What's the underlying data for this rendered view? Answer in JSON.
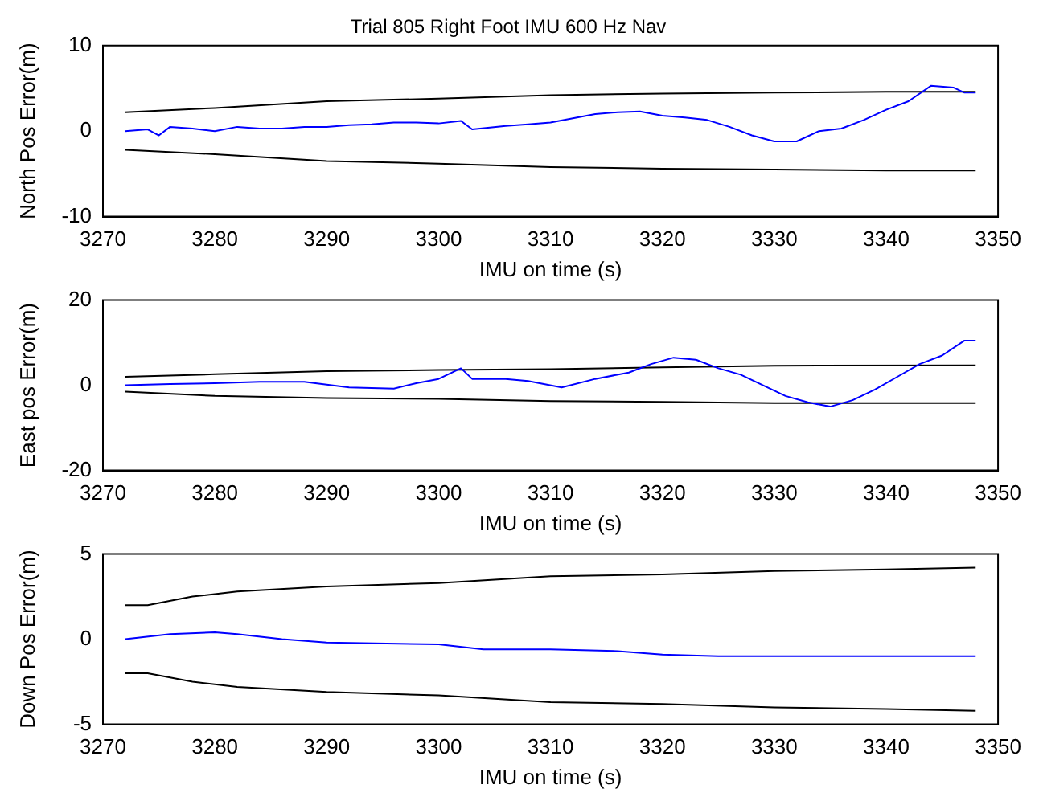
{
  "chart_data": [
    {
      "type": "line",
      "title": "Trial 805 Right Foot IMU 600 Hz Nav",
      "xlabel": "IMU on time (s)",
      "ylabel": "North Pos Error(m)",
      "xlim": [
        3270,
        3350
      ],
      "xticks": [
        3270,
        3280,
        3290,
        3300,
        3310,
        3320,
        3330,
        3340,
        3350
      ],
      "ylim": [
        -10,
        10
      ],
      "yticks": [
        -10,
        0,
        10
      ],
      "marker": "none",
      "series": [
        {
          "color": "#0000ff",
          "x": [
            3272,
            3274,
            3275,
            3276,
            3278,
            3280,
            3282,
            3284,
            3286,
            3288,
            3290,
            3292,
            3294,
            3296,
            3298,
            3300,
            3302,
            3303,
            3306,
            3308,
            3310,
            3312,
            3314,
            3316,
            3318,
            3320,
            3322,
            3324,
            3326,
            3328,
            3330,
            3332,
            3334,
            3336,
            3338,
            3340,
            3342,
            3344,
            3346,
            3347,
            3348
          ],
          "values": [
            0,
            0.2,
            -0.5,
            0.5,
            0.3,
            0,
            0.5,
            0.3,
            0.3,
            0.5,
            0.5,
            0.7,
            0.8,
            1,
            1,
            0.9,
            1.2,
            0.2,
            0.6,
            0.8,
            1,
            1.5,
            2,
            2.2,
            2.3,
            1.8,
            1.6,
            1.3,
            0.5,
            -0.5,
            -1.2,
            -1.2,
            0,
            0.3,
            1.3,
            2.5,
            3.5,
            5.3,
            5.1,
            4.5,
            4.5
          ]
        },
        {
          "color": "#000000",
          "x": [
            3272,
            3280,
            3290,
            3300,
            3310,
            3320,
            3330,
            3340,
            3348
          ],
          "values": [
            2.2,
            2.7,
            3.5,
            3.8,
            4.2,
            4.4,
            4.5,
            4.6,
            4.6
          ]
        },
        {
          "color": "#000000",
          "x": [
            3272,
            3280,
            3290,
            3300,
            3310,
            3320,
            3330,
            3340,
            3348
          ],
          "values": [
            -2.2,
            -2.7,
            -3.5,
            -3.8,
            -4.2,
            -4.4,
            -4.5,
            -4.6,
            -4.6
          ]
        }
      ]
    },
    {
      "type": "line",
      "xlabel": "IMU on time (s)",
      "ylabel": "East pos Error(m)",
      "xlim": [
        3270,
        3350
      ],
      "xticks": [
        3270,
        3280,
        3290,
        3300,
        3310,
        3320,
        3330,
        3340,
        3350
      ],
      "ylim": [
        -20,
        20
      ],
      "yticks": [
        -20,
        0,
        20
      ],
      "marker": "none",
      "series": [
        {
          "color": "#0000ff",
          "x": [
            3272,
            3276,
            3280,
            3284,
            3288,
            3292,
            3296,
            3298,
            3300,
            3302,
            3303,
            3306,
            3308,
            3311,
            3314,
            3317,
            3319,
            3321,
            3323,
            3325,
            3327,
            3329,
            3331,
            3333,
            3335,
            3337,
            3339,
            3341,
            3343,
            3345,
            3347,
            3348
          ],
          "values": [
            0,
            0.3,
            0.5,
            0.8,
            0.8,
            -0.5,
            -0.8,
            0.5,
            1.5,
            4,
            1.5,
            1.5,
            1,
            -0.5,
            1.5,
            3,
            5,
            6.5,
            6,
            4,
            2.5,
            0,
            -2.5,
            -4,
            -5,
            -3.5,
            -1,
            2,
            5,
            7,
            10.5,
            10.5
          ]
        },
        {
          "color": "#000000",
          "x": [
            3272,
            3280,
            3290,
            3300,
            3310,
            3320,
            3330,
            3348
          ],
          "values": [
            2,
            2.6,
            3.3,
            3.6,
            3.8,
            4.2,
            4.6,
            4.7
          ]
        },
        {
          "color": "#000000",
          "x": [
            3272,
            3280,
            3290,
            3300,
            3310,
            3320,
            3330,
            3348
          ],
          "values": [
            -1.5,
            -2.5,
            -3,
            -3.2,
            -3.7,
            -3.9,
            -4.2,
            -4.2
          ]
        }
      ]
    },
    {
      "type": "line",
      "xlabel": "IMU on time (s)",
      "ylabel": "Down Pos Error(m)",
      "xlim": [
        3270,
        3350
      ],
      "xticks": [
        3270,
        3280,
        3290,
        3300,
        3310,
        3320,
        3330,
        3340,
        3350
      ],
      "ylim": [
        -5,
        5
      ],
      "yticks": [
        -5,
        0,
        5
      ],
      "marker": "none",
      "series": [
        {
          "color": "#0000ff",
          "x": [
            3272,
            3276,
            3280,
            3282,
            3286,
            3290,
            3300,
            3304,
            3310,
            3316,
            3320,
            3325,
            3348
          ],
          "values": [
            0,
            0.3,
            0.4,
            0.3,
            0,
            -0.2,
            -0.3,
            -0.6,
            -0.6,
            -0.7,
            -0.9,
            -1,
            -1
          ]
        },
        {
          "color": "#000000",
          "x": [
            3272,
            3274,
            3278,
            3282,
            3290,
            3300,
            3310,
            3320,
            3330,
            3340,
            3348
          ],
          "values": [
            2,
            2,
            2.5,
            2.8,
            3.1,
            3.3,
            3.7,
            3.8,
            4,
            4.1,
            4.2
          ]
        },
        {
          "color": "#000000",
          "x": [
            3272,
            3274,
            3278,
            3282,
            3290,
            3300,
            3310,
            3320,
            3330,
            3340,
            3348
          ],
          "values": [
            -2,
            -2,
            -2.5,
            -2.8,
            -3.1,
            -3.3,
            -3.7,
            -3.8,
            -4,
            -4.1,
            -4.2
          ]
        }
      ]
    }
  ]
}
